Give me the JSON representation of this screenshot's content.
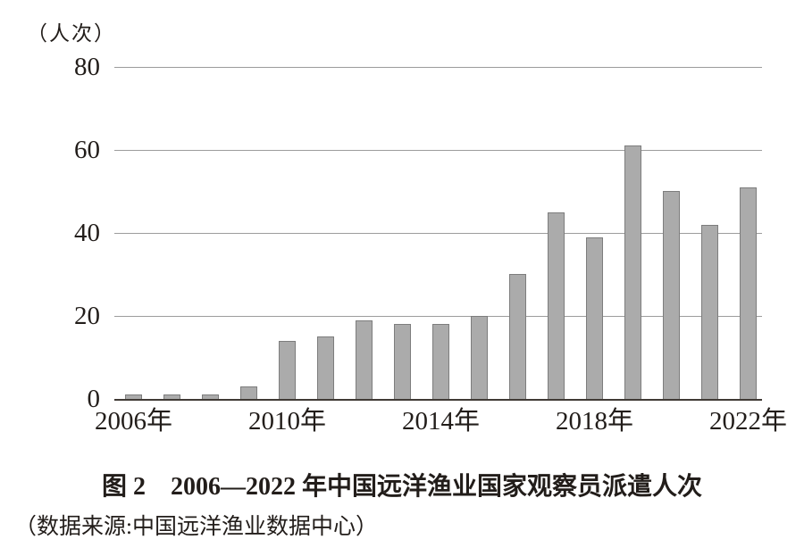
{
  "chart_data": {
    "type": "bar",
    "title": "图 2　2006—2022 年中国远洋渔业国家观察员派遣人次",
    "unit_label": "（人次）",
    "categories": [
      "2006",
      "2007",
      "2008",
      "2009",
      "2010",
      "2011",
      "2012",
      "2013",
      "2014",
      "2015",
      "2016",
      "2017",
      "2018",
      "2019",
      "2020",
      "2021",
      "2022"
    ],
    "values": [
      1,
      1,
      1,
      3,
      14,
      15,
      19,
      18,
      18,
      20,
      30,
      45,
      39,
      61,
      50,
      42,
      51
    ],
    "xlabel": "",
    "ylabel": "人次",
    "ylim": [
      0,
      80
    ],
    "yticks": [
      0,
      20,
      40,
      60,
      80
    ],
    "x_tick_labels": [
      {
        "label": "2006年",
        "index": 0
      },
      {
        "label": "2010年",
        "index": 4
      },
      {
        "label": "2014年",
        "index": 8
      },
      {
        "label": "2018年",
        "index": 12
      },
      {
        "label": "2022年",
        "index": 16
      }
    ],
    "grid": "horizontal",
    "legend": "none",
    "colors": {
      "bar_fill": "#ababab",
      "bar_border": "#7d7d7d",
      "gridline": "#9c9c9c",
      "axis_line": "#403a35",
      "text": "#221d1a"
    }
  },
  "caption": {
    "title": "图 2　2006—2022 年中国远洋渔业国家观察员派遣人次",
    "source": "（数据来源:中国远洋渔业数据中心）"
  }
}
